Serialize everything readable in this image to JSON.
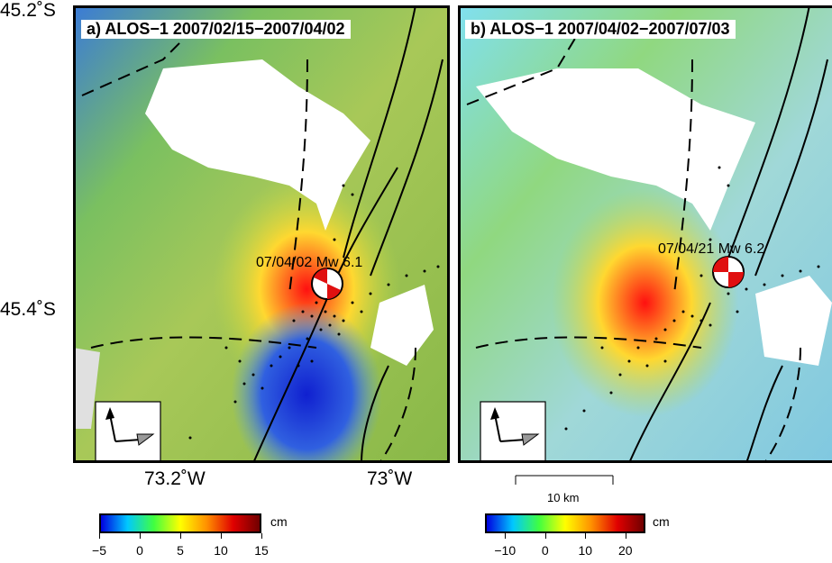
{
  "axes": {
    "lat_top": "45.2˚S",
    "lat_mid": "45.4˚S",
    "lon_left": "73.2˚W",
    "lon_right": "73˚W"
  },
  "panel_a": {
    "title": "a) ALOS−1 2007/02/15−2007/04/02",
    "event_label": "07/04/02  Mw 6.1"
  },
  "panel_b": {
    "title": "b) ALOS−1 2007/04/02−2007/07/03",
    "event_label": "07/04/21  Mw 6.2"
  },
  "scale_bar": {
    "label": "10 km"
  },
  "colorbar_a": {
    "unit": "cm",
    "ticks": [
      "−5",
      "0",
      "5",
      "10",
      "15"
    ],
    "range": [
      -5,
      15
    ],
    "colors": [
      "#0000e0",
      "#00c8ff",
      "#40ff40",
      "#ffff00",
      "#ff9000",
      "#e00000",
      "#700000"
    ]
  },
  "colorbar_b": {
    "unit": "cm",
    "ticks": [
      "−10",
      "0",
      "10",
      "20"
    ],
    "range": [
      -15,
      25
    ],
    "colors": [
      "#0000e0",
      "#00c8ff",
      "#40ff40",
      "#ffff00",
      "#ff9000",
      "#e00000",
      "#700000"
    ]
  },
  "icons": {
    "north_arrow": "satellite-heading-arrow-icon",
    "los_arrow": "line-of-sight-arrow-icon",
    "focal_mechanism": "beachball-icon"
  }
}
